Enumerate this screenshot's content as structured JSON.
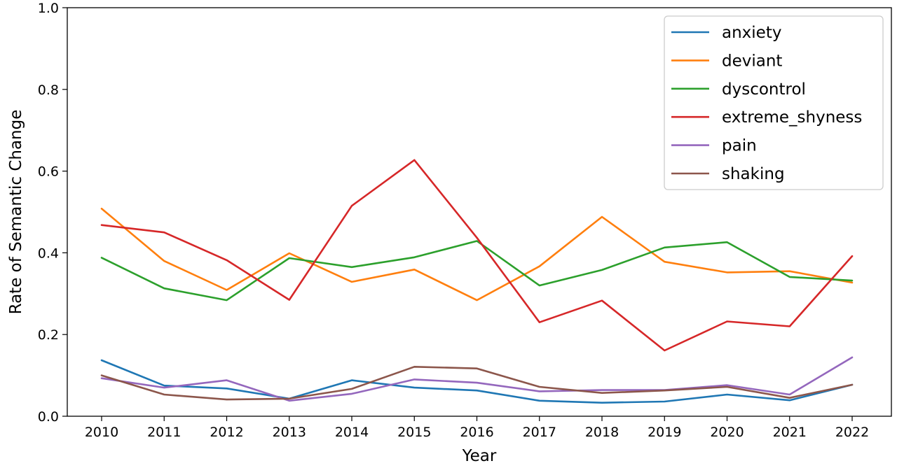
{
  "chart_data": {
    "type": "line",
    "x": [
      "2010",
      "2011",
      "2012",
      "2013",
      "2014",
      "2015",
      "2016",
      "2017",
      "2018",
      "2019",
      "2020",
      "2021",
      "2022"
    ],
    "xlabel": "Year",
    "ylabel": "Rate of Semantic Change",
    "ylim": [
      0,
      1.0
    ],
    "yticks": [
      "0.0",
      "0.2",
      "0.4",
      "0.6",
      "0.8",
      "1.0"
    ],
    "grid": false,
    "legend_position": "top-right",
    "series": [
      {
        "name": "anxiety",
        "color": "#1f77b4",
        "values": [
          0.137,
          0.075,
          0.068,
          0.043,
          0.088,
          0.07,
          0.063,
          0.038,
          0.033,
          0.036,
          0.053,
          0.039,
          0.077
        ]
      },
      {
        "name": "deviant",
        "color": "#ff7f0e",
        "values": [
          0.508,
          0.38,
          0.309,
          0.399,
          0.329,
          0.359,
          0.284,
          0.367,
          0.488,
          0.378,
          0.352,
          0.355,
          0.327
        ]
      },
      {
        "name": "dyscontrol",
        "color": "#2ca02c",
        "values": [
          0.388,
          0.313,
          0.284,
          0.387,
          0.365,
          0.389,
          0.429,
          0.32,
          0.358,
          0.413,
          0.426,
          0.341,
          0.332
        ]
      },
      {
        "name": "extreme_shyness",
        "color": "#d62728",
        "values": [
          0.468,
          0.45,
          0.382,
          0.285,
          0.515,
          0.627,
          0.437,
          0.23,
          0.283,
          0.161,
          0.232,
          0.22,
          0.392
        ]
      },
      {
        "name": "pain",
        "color": "#9467bd",
        "values": [
          0.093,
          0.07,
          0.088,
          0.038,
          0.055,
          0.09,
          0.082,
          0.061,
          0.064,
          0.064,
          0.076,
          0.053,
          0.144
        ]
      },
      {
        "name": "shaking",
        "color": "#8c564b",
        "values": [
          0.1,
          0.053,
          0.041,
          0.043,
          0.067,
          0.121,
          0.117,
          0.072,
          0.057,
          0.063,
          0.072,
          0.045,
          0.077
        ]
      }
    ]
  }
}
